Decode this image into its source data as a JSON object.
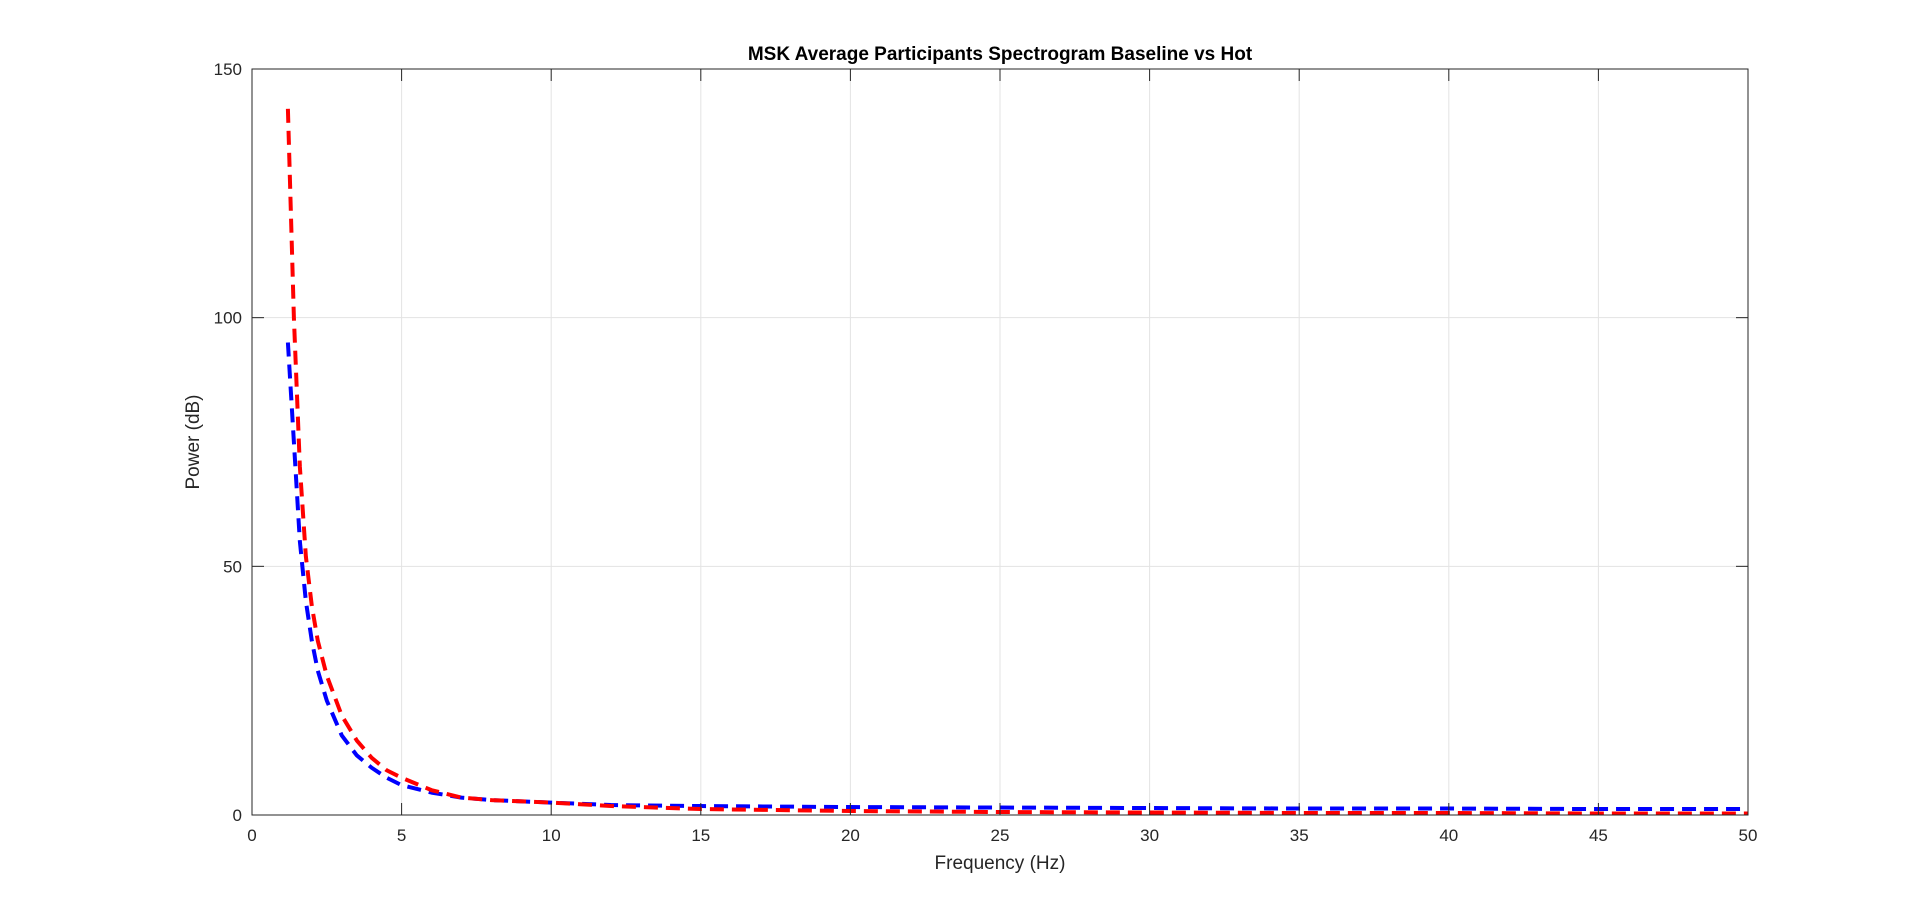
{
  "chart_data": {
    "type": "line",
    "title": "MSK Average Participants Spectrogram Baseline vs Hot",
    "xlabel": "Frequency (Hz)",
    "ylabel": "Power (dB)",
    "xlim": [
      0,
      50
    ],
    "ylim": [
      0,
      150
    ],
    "xticks": [
      0,
      5,
      10,
      15,
      20,
      25,
      30,
      35,
      40,
      45,
      50
    ],
    "yticks": [
      0,
      50,
      100,
      150
    ],
    "grid": true,
    "line_style": "dashed",
    "series": [
      {
        "color": "#0000ff",
        "x": [
          1.2,
          1.4,
          1.6,
          1.8,
          2.0,
          2.2,
          2.5,
          3.0,
          3.5,
          4.0,
          4.5,
          5.0,
          6.0,
          7.0,
          8.0,
          10.0,
          12.0,
          15.0,
          20.0,
          25.0,
          30.0,
          35.0,
          40.0,
          45.0,
          50.0
        ],
        "y": [
          95,
          75,
          55,
          43,
          35,
          29,
          23,
          16,
          12,
          9.5,
          7.5,
          6,
          4.5,
          3.5,
          3,
          2.5,
          2,
          1.8,
          1.6,
          1.5,
          1.4,
          1.3,
          1.3,
          1.2,
          1.2
        ]
      },
      {
        "color": "#ff0000",
        "x": [
          1.2,
          1.4,
          1.6,
          1.8,
          2.0,
          2.2,
          2.5,
          3.0,
          3.5,
          4.0,
          4.5,
          5.0,
          6.0,
          7.0,
          8.0,
          10.0,
          12.0,
          15.0,
          20.0,
          25.0,
          30.0,
          35.0,
          40.0,
          45.0,
          50.0
        ],
        "y": [
          142,
          100,
          70,
          52,
          42,
          35,
          28,
          20,
          15,
          11.5,
          9,
          7.5,
          5,
          3.5,
          3,
          2.5,
          1.8,
          1.2,
          0.8,
          0.6,
          0.5,
          0.4,
          0.4,
          0.3,
          0.3
        ]
      }
    ]
  }
}
